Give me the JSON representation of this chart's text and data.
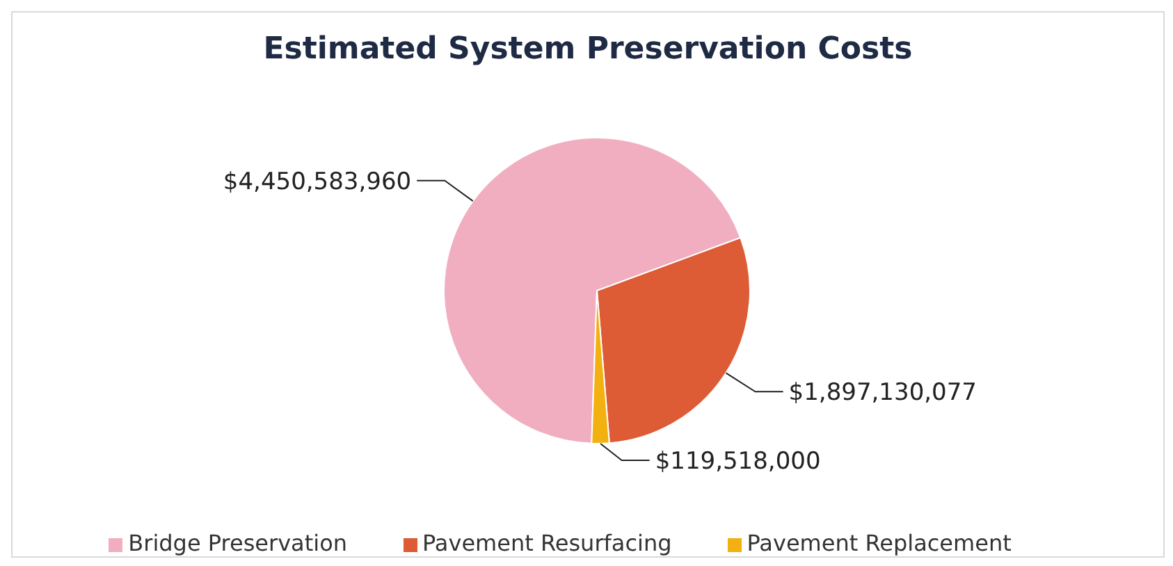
{
  "chart_data": {
    "type": "pie",
    "title": "Estimated System Preservation Costs",
    "categories": [
      "Bridge Preservation",
      "Pavement Resurfacing",
      "Pavement Replacement"
    ],
    "values": [
      4450583960,
      1897130077,
      119518000
    ],
    "colors": [
      "#f0aec0",
      "#dd5b35",
      "#f2b011"
    ],
    "value_labels": [
      "$4,450,583,960",
      "$1,897,130,077",
      "$119,518,000"
    ],
    "legend": "bottom"
  }
}
